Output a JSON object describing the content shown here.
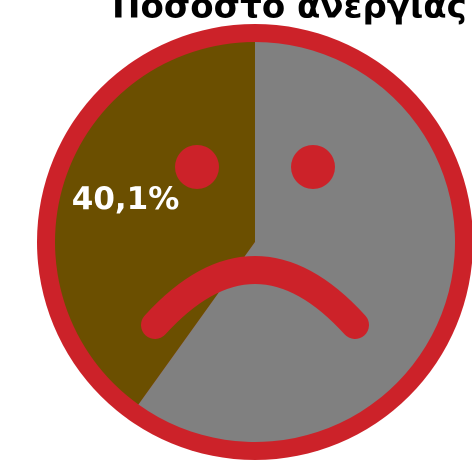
{
  "chart_data": {
    "type": "pie",
    "title": "Ποσοστό ανεργίας",
    "values": [
      40.1,
      59.9
    ],
    "value_labels": [
      "40,1%",
      null
    ],
    "colors": [
      "#6b4f00",
      "#808080"
    ],
    "ring_color": "#cc2229"
  }
}
